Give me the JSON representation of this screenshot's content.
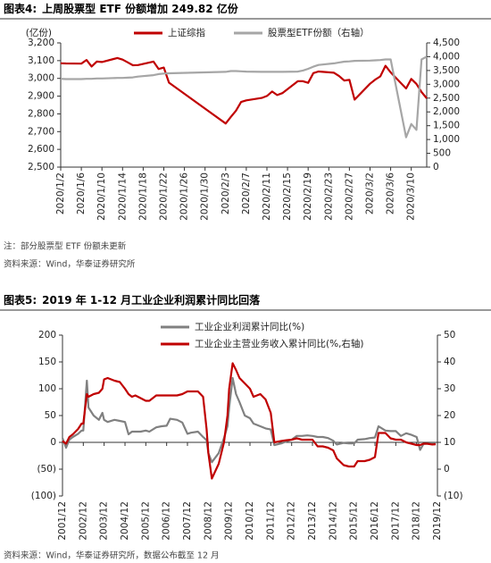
{
  "sections": [
    {
      "label": "图表4:",
      "title": "上周股票型 ETF 份额增加 249.82 亿份",
      "note": "注：部分股票型 ETF 份额未更新",
      "source": "资料来源：Wind，华泰证券研究所"
    },
    {
      "label": "图表5:",
      "title": "2019 年 1-12 月工业企业利润累计同比回落",
      "source": "资料来源：Wind，华泰证券研究所，数据公布截至 12 月"
    }
  ],
  "chart_data": [
    {
      "type": "line",
      "ylabel": "(亿份)",
      "legend": "top",
      "x": [
        "2020/1/2",
        "2020/1/3",
        "2020/1/6",
        "2020/1/7",
        "2020/1/8",
        "2020/1/9",
        "2020/1/10",
        "2020/1/13",
        "2020/1/14",
        "2020/1/15",
        "2020/1/16",
        "2020/1/17",
        "2020/1/20",
        "2020/1/21",
        "2020/1/22",
        "2020/1/23",
        "2020/2/3",
        "2020/2/4",
        "2020/2/5",
        "2020/2/6",
        "2020/2/7",
        "2020/2/10",
        "2020/2/11",
        "2020/2/12",
        "2020/2/13",
        "2020/2/14",
        "2020/2/17",
        "2020/2/18",
        "2020/2/19",
        "2020/2/20",
        "2020/2/21",
        "2020/2/24",
        "2020/2/25",
        "2020/2/26",
        "2020/2/27",
        "2020/2/28",
        "2020/3/2",
        "2020/3/3",
        "2020/3/4",
        "2020/3/5",
        "2020/3/6",
        "2020/3/9",
        "2020/3/10",
        "2020/3/11",
        "2020/3/12",
        "2020/3/13"
      ],
      "series": [
        {
          "name": "上证综指",
          "color": "#c00000",
          "values": [
            3085,
            3084,
            3083,
            3104,
            3067,
            3095,
            3092,
            3115,
            3106,
            3090,
            3074,
            3075,
            3095,
            3053,
            3061,
            2976,
            2746,
            2783,
            2818,
            2867,
            2876,
            2890,
            2901,
            2926,
            2906,
            2917,
            2984,
            2984,
            2975,
            3030,
            3039,
            3032,
            3013,
            2988,
            2992,
            2880,
            2970,
            2993,
            3011,
            3071,
            3034,
            2943,
            2997,
            2969,
            2923,
            2888
          ]
        },
        {
          "name": "股票型ETF份额（右轴）",
          "color": "#a6a6a6",
          "axis": "y2",
          "values": [
            3200,
            3190,
            3190,
            3200,
            3200,
            3210,
            3210,
            3230,
            3230,
            3240,
            3250,
            3280,
            3330,
            3370,
            3390,
            3400,
            3450,
            3480,
            3480,
            3470,
            3460,
            3450,
            3450,
            3450,
            3450,
            3450,
            3460,
            3500,
            3560,
            3640,
            3700,
            3760,
            3790,
            3820,
            3830,
            3850,
            3860,
            3870,
            3880,
            3900,
            3900,
            1080,
            1560,
            1350,
            3900,
            4000
          ]
        }
      ],
      "xlim": [
        "2020/1/2",
        "2020/3/13"
      ],
      "xticks": [
        "2020/1/2",
        "2020/1/6",
        "2020/1/10",
        "2020/1/14",
        "2020/1/18",
        "2020/1/22",
        "2020/1/26",
        "2020/1/30",
        "2020/2/3",
        "2020/2/7",
        "2020/2/11",
        "2020/2/15",
        "2020/2/19",
        "2020/2/23",
        "2020/2/27",
        "2020/3/2",
        "2020/3/6",
        "2020/3/10"
      ],
      "ylim": [
        2500,
        3200
      ],
      "yticks": [
        {
          "value": 2500,
          "label": "2,500"
        },
        {
          "value": 2600,
          "label": "2,600"
        },
        {
          "value": 2700,
          "label": "2,700"
        },
        {
          "value": 2800,
          "label": "2,800"
        },
        {
          "value": 2900,
          "label": "2,900"
        },
        {
          "value": 3000,
          "label": "3,000"
        },
        {
          "value": 3100,
          "label": "3,100"
        },
        {
          "value": 3200,
          "label": "3,200"
        }
      ],
      "y2lim": [
        0,
        4500
      ],
      "y2ticks": [
        0,
        500,
        {
          "value": 1000,
          "label": "1,000"
        },
        {
          "value": 1500,
          "label": "1,500"
        },
        {
          "value": 2000,
          "label": "2,000"
        },
        {
          "value": 2500,
          "label": "2,500"
        },
        {
          "value": 3000,
          "label": "3,000"
        },
        {
          "value": 3500,
          "label": "3,500"
        },
        {
          "value": 4000,
          "label": "4,000"
        },
        {
          "value": 4500,
          "label": "4,500"
        }
      ]
    },
    {
      "type": "line",
      "legend": "top",
      "x": [
        "2001/12",
        "2002/2",
        "2002/4",
        "2002/6",
        "2002/9",
        "2002/11",
        "2002/12",
        "2003/2",
        "2003/3",
        "2003/6",
        "2003/9",
        "2003/11",
        "2003/12",
        "2004/2",
        "2004/6",
        "2004/9",
        "2004/12",
        "2005/2",
        "2005/4",
        "2005/6",
        "2005/9",
        "2005/12",
        "2006/2",
        "2006/6",
        "2006/9",
        "2006/12",
        "2007/2",
        "2007/6",
        "2007/9",
        "2007/12",
        "2008/2",
        "2008/6",
        "2008/9",
        "2008/11",
        "2008/12",
        "2009/2",
        "2009/6",
        "2009/9",
        "2009/11",
        "2009/12",
        "2010/2",
        "2010/4",
        "2010/6",
        "2010/9",
        "2010/12",
        "2011/2",
        "2011/6",
        "2011/9",
        "2011/12",
        "2012/2",
        "2012/6",
        "2012/9",
        "2012/12",
        "2013/3",
        "2013/6",
        "2013/9",
        "2013/12",
        "2014/3",
        "2014/6",
        "2014/9",
        "2014/12",
        "2015/2",
        "2015/6",
        "2015/9",
        "2015/12",
        "2016/2",
        "2016/6",
        "2016/9",
        "2016/12",
        "2017/2",
        "2017/6",
        "2017/9",
        "2017/12",
        "2018/3",
        "2018/6",
        "2018/9",
        "2018/12",
        "2019/2",
        "2019/4",
        "2019/6",
        "2019/9",
        "2019/11"
      ],
      "series": [
        {
          "name": "工业企业利润累计同比(%)",
          "color": "#808080",
          "values": [
            8,
            -10,
            5,
            10,
            16,
            22,
            22,
            115,
            65,
            50,
            42,
            55,
            42,
            38,
            42,
            40,
            38,
            15,
            20,
            20,
            20,
            22,
            20,
            28,
            30,
            31,
            44,
            42,
            37,
            16,
            18,
            20,
            10,
            4,
            -20,
            -37,
            -20,
            8,
            30,
            65,
            120,
            90,
            75,
            50,
            45,
            35,
            30,
            26,
            24,
            -5,
            -2,
            2,
            5,
            12,
            12,
            13,
            12,
            10,
            10,
            8,
            3,
            -4,
            -1,
            -2,
            -2,
            5,
            6,
            8,
            9,
            30,
            22,
            21,
            21,
            12,
            17,
            14,
            10,
            -14,
            -3,
            -2.5,
            -2,
            -2
          ]
        },
        {
          "name": "工业企业主营业务收入累计同比(%,右轴)",
          "color": "#c00000",
          "axis": "y2",
          "values": [
            10.5,
            9.5,
            12,
            13,
            15,
            17,
            17,
            28,
            27,
            28,
            28.5,
            30,
            33.5,
            34,
            33,
            32.5,
            30,
            28,
            27,
            27.5,
            26.5,
            25.5,
            25.5,
            27.5,
            27.5,
            27.5,
            27.5,
            27.5,
            28,
            29,
            29,
            29,
            27,
            15,
            6,
            -3.5,
            2,
            10,
            20,
            30,
            39.5,
            37,
            34,
            32,
            30,
            27,
            28,
            26,
            21,
            10,
            10.5,
            10.8,
            11,
            11.5,
            11,
            11,
            11,
            8.5,
            8.5,
            8,
            7,
            4,
            1.5,
            1,
            1,
            3,
            3,
            3.5,
            4.5,
            13.5,
            13.5,
            11.5,
            11,
            11,
            10,
            9.5,
            9,
            9,
            9.5,
            9.5,
            9.2,
            9.3
          ]
        }
      ],
      "xlim": [
        "2001/12",
        "2019/12"
      ],
      "xticks": [
        "2001/12",
        "2002/12",
        "2003/12",
        "2004/12",
        "2005/12",
        "2006/12",
        "2007/12",
        "2008/12",
        "2009/12",
        "2010/12",
        "2011/12",
        "2012/12",
        "2013/12",
        "2014/12",
        "2015/12",
        "2016/12",
        "2017/12",
        "2018/12",
        "2019/12"
      ],
      "ylim": [
        -100,
        200
      ],
      "yticks": [
        {
          "value": -100,
          "label": "(100)"
        },
        {
          "value": -50,
          "label": "(50)"
        },
        0,
        50,
        100,
        150,
        200
      ],
      "y2lim": [
        -10,
        50
      ],
      "y2ticks": [
        {
          "value": -10,
          "label": "(10)"
        },
        0,
        10,
        20,
        30,
        40,
        50
      ]
    }
  ]
}
